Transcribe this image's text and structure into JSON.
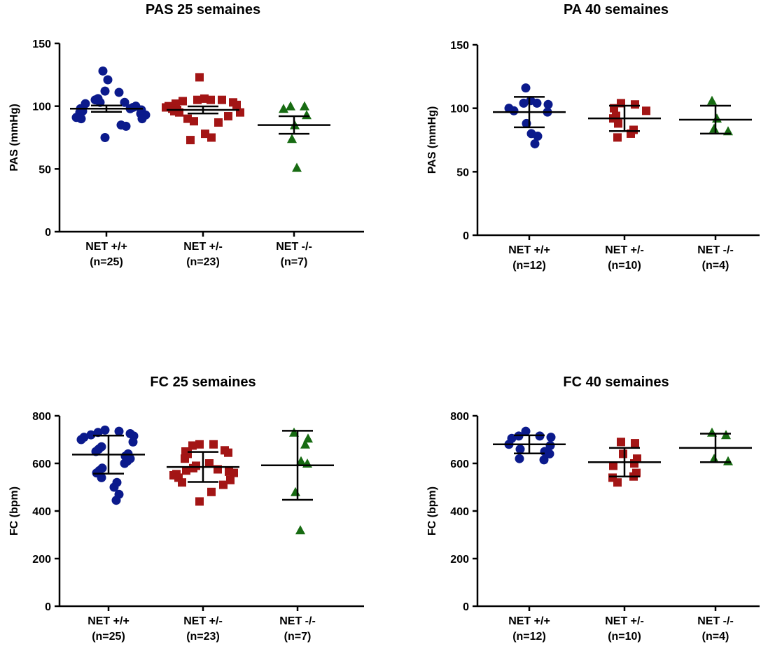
{
  "chart_data": [
    {
      "type": "dot",
      "title": "PAS 25 semaines",
      "ylabel": "PAS (mmHg)",
      "ylim": [
        0,
        150
      ],
      "yticks": [
        0,
        50,
        100,
        150
      ],
      "groups": [
        {
          "name": "NET +/+",
          "n_label": "(n=25)",
          "color": "#0b1a8c",
          "marker": "circle",
          "mean": 98,
          "error": 2.5,
          "values": [
            128,
            121,
            112,
            111,
            106,
            105,
            103,
            103,
            102,
            100,
            99,
            98,
            98,
            97,
            96,
            95,
            94,
            93,
            92,
            91,
            90,
            90,
            85,
            84,
            75
          ]
        },
        {
          "name": "NET +/-",
          "n_label": "(n=23)",
          "color": "#a31515",
          "marker": "square",
          "mean": 97,
          "error": 2.8,
          "values": [
            123,
            106,
            105,
            105,
            105,
            104,
            103,
            102,
            101,
            100,
            99,
            98,
            97,
            96,
            95,
            95,
            92,
            90,
            88,
            87,
            78,
            75,
            73
          ]
        },
        {
          "name": "NET -/-",
          "n_label": "(n=7)",
          "color": "#176b12",
          "marker": "triangle",
          "mean": 85,
          "error": 7,
          "values": [
            100,
            100,
            98,
            93,
            85,
            74,
            51
          ]
        }
      ]
    },
    {
      "type": "dot",
      "title": "PA 40 semaines",
      "ylabel": "PAS (mmHg)",
      "ylim": [
        0,
        150
      ],
      "yticks": [
        0,
        50,
        100,
        150
      ],
      "groups": [
        {
          "name": "NET +/+",
          "n_label": "(n=12)",
          "color": "#0b1a8c",
          "marker": "circle",
          "mean": 97,
          "error": 12,
          "values": [
            116,
            106,
            104,
            104,
            103,
            100,
            98,
            97,
            88,
            80,
            78,
            72
          ]
        },
        {
          "name": "NET +/-",
          "n_label": "(n=10)",
          "color": "#a31515",
          "marker": "square",
          "mean": 92,
          "error": 10,
          "values": [
            104,
            103,
            100,
            98,
            94,
            92,
            88,
            83,
            80,
            77
          ]
        },
        {
          "name": "NET -/-",
          "n_label": "(n=4)",
          "color": "#176b12",
          "marker": "triangle",
          "mean": 91,
          "error": 11,
          "values": [
            106,
            92,
            84,
            82
          ]
        }
      ]
    },
    {
      "type": "dot",
      "title": "FC 25 semaines",
      "ylabel": "FC (bpm)",
      "ylim": [
        0,
        800
      ],
      "yticks": [
        0,
        200,
        400,
        600,
        800
      ],
      "groups": [
        {
          "name": "NET +/+",
          "n_label": "(n=25)",
          "color": "#0b1a8c",
          "marker": "circle",
          "mean": 637,
          "error": 80,
          "values": [
            740,
            735,
            730,
            725,
            720,
            715,
            710,
            700,
            690,
            670,
            660,
            650,
            640,
            630,
            620,
            610,
            600,
            580,
            570,
            560,
            540,
            520,
            500,
            470,
            445
          ]
        },
        {
          "name": "NET +/-",
          "n_label": "(n=23)",
          "color": "#a31515",
          "marker": "square",
          "mean": 585,
          "error": 63,
          "values": [
            680,
            680,
            675,
            655,
            650,
            645,
            640,
            620,
            600,
            590,
            580,
            575,
            570,
            565,
            560,
            555,
            550,
            540,
            530,
            520,
            510,
            480,
            440
          ]
        },
        {
          "name": "NET -/-",
          "n_label": "(n=7)",
          "color": "#176b12",
          "marker": "triangle",
          "mean": 592,
          "error": 145,
          "values": [
            730,
            705,
            680,
            610,
            600,
            480,
            320
          ]
        }
      ]
    },
    {
      "type": "dot",
      "title": "FC 40 semaines",
      "ylabel": "FC (bpm)",
      "ylim": [
        0,
        800
      ],
      "yticks": [
        0,
        200,
        400,
        600,
        800
      ],
      "groups": [
        {
          "name": "NET +/+",
          "n_label": "(n=12)",
          "color": "#0b1a8c",
          "marker": "circle",
          "mean": 680,
          "error": 38,
          "values": [
            735,
            715,
            715,
            710,
            705,
            680,
            675,
            660,
            650,
            640,
            620,
            615
          ]
        },
        {
          "name": "NET +/-",
          "n_label": "(n=10)",
          "color": "#a31515",
          "marker": "square",
          "mean": 605,
          "error": 60,
          "values": [
            690,
            685,
            640,
            620,
            600,
            590,
            560,
            545,
            540,
            520
          ]
        },
        {
          "name": "NET -/-",
          "n_label": "(n=4)",
          "color": "#176b12",
          "marker": "triangle",
          "mean": 665,
          "error": 60,
          "values": [
            730,
            720,
            620,
            610
          ]
        }
      ]
    }
  ]
}
